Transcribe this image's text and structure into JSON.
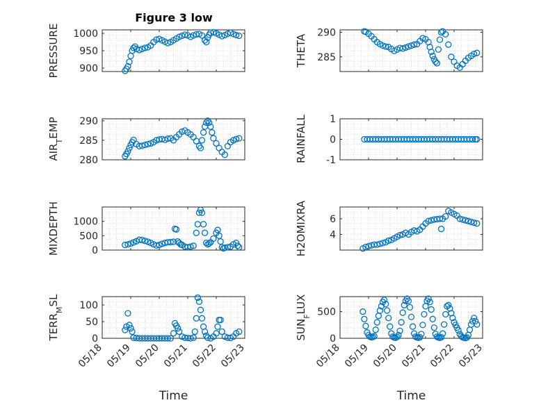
{
  "figure": {
    "title": "Figure 3 low",
    "xlabel": "Time"
  },
  "colors": {
    "marker": "#0072BD",
    "grid": "#d3d3d3",
    "axis": "#262626"
  },
  "x_ticks": [
    "05/18",
    "05/19",
    "05/20",
    "05/21",
    "05/22",
    "05/23"
  ],
  "chart_data": [
    {
      "type": "scatter",
      "ylabel": "PRESSURE",
      "title": "Figure 3 low",
      "xlim": [
        "05/18",
        "05/23"
      ],
      "ylim": [
        890,
        1010
      ],
      "yticks": [
        900,
        950,
        1000
      ],
      "grid": true,
      "series": [
        {
          "x": [
            0.8,
            0.85,
            0.9,
            0.95,
            1.0,
            1.05,
            1.1,
            1.15,
            1.2,
            1.3,
            1.4,
            1.5,
            1.6,
            1.7,
            1.8,
            1.9,
            2.0,
            2.1,
            2.2,
            2.3,
            2.4,
            2.5,
            2.6,
            2.7,
            2.8,
            2.9,
            3.0,
            3.1,
            3.2,
            3.3,
            3.4,
            3.5,
            3.6,
            3.65,
            3.7,
            3.75,
            3.8,
            3.9,
            4.0,
            4.1,
            4.2,
            4.3,
            4.4,
            4.5,
            4.6,
            4.7,
            4.8
          ],
          "y": [
            892,
            898,
            905,
            918,
            935,
            950,
            958,
            962,
            955,
            952,
            955,
            958,
            960,
            965,
            975,
            982,
            984,
            980,
            976,
            972,
            975,
            980,
            985,
            990,
            993,
            996,
            994,
            990,
            994,
            997,
            998,
            994,
            980,
            975,
            988,
            996,
            1002,
            1003,
            1000,
            996,
            992,
            995,
            999,
            1002,
            998,
            995,
            993
          ]
        }
      ]
    },
    {
      "type": "scatter",
      "ylabel": "THETA",
      "xlim": [
        "05/18",
        "05/23"
      ],
      "ylim": [
        282,
        290.5
      ],
      "yticks": [
        285,
        290
      ],
      "grid": true,
      "series": [
        {
          "x": [
            0.85,
            0.9,
            1.0,
            1.1,
            1.2,
            1.3,
            1.4,
            1.5,
            1.6,
            1.7,
            1.8,
            1.9,
            2.0,
            2.1,
            2.2,
            2.3,
            2.4,
            2.5,
            2.6,
            2.7,
            2.8,
            2.9,
            3.0,
            3.1,
            3.15,
            3.2,
            3.25,
            3.3,
            3.35,
            3.4,
            3.45,
            3.5,
            3.55,
            3.6,
            3.7,
            3.8,
            3.9,
            4.0,
            4.1,
            4.2,
            4.3,
            4.4,
            4.5,
            4.6,
            4.7,
            4.8
          ],
          "y": [
            290.2,
            290.1,
            289.7,
            289.2,
            288.6,
            288,
            287.6,
            287.3,
            287.1,
            287,
            286.6,
            286.2,
            286.5,
            286.8,
            286.7,
            286.9,
            287.1,
            287.3,
            287.5,
            287.6,
            288.2,
            288.8,
            288.6,
            288,
            287,
            286,
            285.2,
            284.5,
            284,
            283.7,
            286.5,
            288.5,
            290,
            290.2,
            289.6,
            287.5,
            285,
            284,
            283.2,
            282.8,
            283.5,
            284.2,
            284.8,
            285.2,
            285.6,
            285.8
          ]
        }
      ]
    },
    {
      "type": "scatter",
      "ylabel": "AIR_TEMP",
      "xlim": [
        "05/18",
        "05/23"
      ],
      "ylim": [
        280,
        290.5
      ],
      "yticks": [
        280,
        285,
        290
      ],
      "grid": true,
      "series": [
        {
          "x": [
            0.8,
            0.85,
            0.9,
            0.95,
            1.0,
            1.05,
            1.1,
            1.2,
            1.3,
            1.4,
            1.5,
            1.6,
            1.7,
            1.8,
            1.9,
            2.0,
            2.1,
            2.2,
            2.3,
            2.4,
            2.5,
            2.6,
            2.7,
            2.8,
            2.9,
            3.0,
            3.1,
            3.2,
            3.3,
            3.4,
            3.45,
            3.5,
            3.55,
            3.6,
            3.65,
            3.7,
            3.75,
            3.8,
            3.85,
            3.9,
            4.0,
            4.1,
            4.2,
            4.3,
            4.4,
            4.5,
            4.6,
            4.7,
            4.8
          ],
          "y": [
            280.9,
            281.5,
            282.2,
            283,
            283.8,
            284.5,
            285.1,
            284,
            283.5,
            283.6,
            283.8,
            284,
            284.2,
            284.5,
            285,
            285.2,
            285.3,
            285.1,
            285.4,
            285.5,
            285,
            285.8,
            286.5,
            287.2,
            287.5,
            287,
            286.5,
            285.8,
            284.8,
            283.5,
            283,
            285,
            287,
            288.5,
            289.5,
            290,
            289.5,
            288.5,
            287,
            285.5,
            284.2,
            283,
            282,
            281.3,
            283.5,
            284.5,
            285,
            285.3,
            285.5
          ]
        }
      ]
    },
    {
      "type": "scatter",
      "ylabel": "RAINFALL",
      "xlim": [
        "05/18",
        "05/23"
      ],
      "ylim": [
        -1,
        1
      ],
      "yticks": [
        -1,
        0,
        1
      ],
      "grid": true,
      "series": [
        {
          "x": [
            0.85,
            0.95,
            1.05,
            1.15,
            1.25,
            1.35,
            1.45,
            1.55,
            1.65,
            1.75,
            1.85,
            1.95,
            2.05,
            2.15,
            2.25,
            2.35,
            2.45,
            2.55,
            2.65,
            2.75,
            2.85,
            2.95,
            3.05,
            3.15,
            3.25,
            3.35,
            3.45,
            3.55,
            3.65,
            3.75,
            3.85,
            3.95,
            4.05,
            4.15,
            4.25,
            4.35,
            4.45,
            4.55,
            4.65,
            4.75,
            4.8
          ],
          "y": [
            0,
            0,
            0,
            0,
            0,
            0,
            0,
            0,
            0,
            0,
            0,
            0,
            0,
            0,
            0,
            0,
            0,
            0,
            0,
            0,
            0,
            0,
            0,
            0,
            0,
            0,
            0,
            0,
            0,
            0,
            0,
            0,
            0,
            0,
            0,
            0,
            0,
            0,
            0,
            0,
            0
          ]
        }
      ]
    },
    {
      "type": "scatter",
      "ylabel": "MIXDEPTH",
      "xlim": [
        "05/18",
        "05/23"
      ],
      "ylim": [
        0,
        1500
      ],
      "yticks": [
        0,
        500,
        1000
      ],
      "grid": true,
      "series": [
        {
          "x": [
            0.8,
            0.9,
            1.0,
            1.1,
            1.2,
            1.3,
            1.4,
            1.5,
            1.6,
            1.7,
            1.8,
            1.9,
            2.0,
            2.1,
            2.2,
            2.3,
            2.4,
            2.5,
            2.55,
            2.6,
            2.65,
            2.7,
            2.75,
            2.8,
            2.9,
            3.0,
            3.1,
            3.2,
            3.3,
            3.35,
            3.4,
            3.45,
            3.5,
            3.55,
            3.6,
            3.65,
            3.7,
            3.75,
            3.8,
            3.9,
            4.0,
            4.05,
            4.1,
            4.15,
            4.2,
            4.25,
            4.3,
            4.4,
            4.5,
            4.6,
            4.7,
            4.75,
            4.8
          ],
          "y": [
            180,
            200,
            230,
            270,
            310,
            360,
            350,
            320,
            290,
            250,
            200,
            160,
            180,
            220,
            250,
            270,
            280,
            290,
            740,
            720,
            300,
            250,
            200,
            180,
            120,
            100,
            120,
            150,
            600,
            900,
            1300,
            1400,
            1300,
            900,
            600,
            250,
            200,
            230,
            270,
            400,
            600,
            700,
            500,
            300,
            100,
            60,
            80,
            100,
            120,
            200,
            250,
            150,
            100
          ]
        }
      ]
    },
    {
      "type": "scatter",
      "ylabel": "H2OMIXRA",
      "xlim": [
        "05/18",
        "05/23"
      ],
      "ylim": [
        2,
        7.5
      ],
      "yticks": [
        4,
        6
      ],
      "grid": true,
      "series": [
        {
          "x": [
            0.8,
            0.9,
            1.0,
            1.1,
            1.2,
            1.3,
            1.4,
            1.5,
            1.6,
            1.7,
            1.8,
            1.9,
            2.0,
            2.1,
            2.2,
            2.3,
            2.4,
            2.5,
            2.6,
            2.7,
            2.8,
            2.9,
            3.0,
            3.1,
            3.2,
            3.3,
            3.4,
            3.5,
            3.55,
            3.6,
            3.7,
            3.8,
            3.9,
            4.0,
            4.1,
            4.2,
            4.3,
            4.4,
            4.5,
            4.6,
            4.7,
            4.8
          ],
          "y": [
            2.2,
            2.4,
            2.5,
            2.6,
            2.7,
            2.7,
            2.8,
            2.9,
            3.0,
            3.2,
            3.3,
            3.5,
            3.7,
            3.9,
            4.0,
            4.2,
            4.0,
            4.3,
            4.5,
            4.4,
            4.6,
            5.0,
            5.4,
            5.7,
            5.8,
            5.9,
            5.95,
            6.0,
            4.7,
            6.0,
            6.3,
            7.0,
            6.8,
            6.6,
            6.4,
            6.0,
            5.9,
            5.8,
            5.7,
            5.6,
            5.5,
            5.4
          ]
        }
      ]
    },
    {
      "type": "scatter",
      "ylabel": "TERR_MSL",
      "xlim": [
        "05/18",
        "05/23"
      ],
      "ylim": [
        0,
        125
      ],
      "yticks": [
        0,
        50,
        100
      ],
      "grid": true,
      "series": [
        {
          "x": [
            0.8,
            0.85,
            0.9,
            0.95,
            1.0,
            1.05,
            1.1,
            1.2,
            1.3,
            1.4,
            1.5,
            1.6,
            1.7,
            1.8,
            1.9,
            2.0,
            2.1,
            2.2,
            2.3,
            2.4,
            2.5,
            2.55,
            2.6,
            2.65,
            2.7,
            2.8,
            2.9,
            3.0,
            3.1,
            3.2,
            3.25,
            3.3,
            3.35,
            3.4,
            3.45,
            3.5,
            3.55,
            3.6,
            3.65,
            3.7,
            3.8,
            3.9,
            4.0,
            4.05,
            4.1,
            4.15,
            4.2,
            4.3,
            4.4,
            4.5,
            4.6,
            4.7,
            4.8
          ],
          "y": [
            25,
            35,
            75,
            40,
            30,
            20,
            2,
            1,
            0,
            0,
            0,
            0,
            0,
            0,
            0,
            0,
            0,
            0,
            0,
            0,
            15,
            45,
            38,
            30,
            20,
            5,
            2,
            1,
            0,
            2,
            20,
            60,
            122,
            110,
            85,
            60,
            35,
            20,
            8,
            2,
            0,
            5,
            15,
            35,
            55,
            55,
            20,
            5,
            2,
            1,
            5,
            15,
            20
          ]
        }
      ]
    },
    {
      "type": "scatter",
      "ylabel": "SUN_FLUX",
      "xlim": [
        "05/18",
        "05/23"
      ],
      "ylim": [
        0,
        780
      ],
      "yticks": [
        0,
        500
      ],
      "grid": true,
      "series": [
        {
          "x": [
            0.8,
            0.85,
            0.9,
            0.95,
            1.0,
            1.05,
            1.1,
            1.15,
            1.2,
            1.25,
            1.3,
            1.35,
            1.4,
            1.45,
            1.5,
            1.55,
            1.6,
            1.65,
            1.7,
            1.75,
            1.8,
            1.85,
            1.9,
            1.95,
            2.0,
            2.05,
            2.1,
            2.15,
            2.2,
            2.25,
            2.3,
            2.35,
            2.4,
            2.45,
            2.5,
            2.55,
            2.6,
            2.65,
            2.7,
            2.75,
            2.8,
            2.85,
            2.9,
            2.95,
            3.0,
            3.05,
            3.1,
            3.15,
            3.2,
            3.25,
            3.3,
            3.35,
            3.4,
            3.45,
            3.5,
            3.55,
            3.6,
            3.65,
            3.7,
            3.75,
            3.8,
            3.85,
            3.9,
            3.95,
            4.0,
            4.05,
            4.1,
            4.15,
            4.2,
            4.25,
            4.3,
            4.35,
            4.4,
            4.45,
            4.5,
            4.55,
            4.6,
            4.65,
            4.7,
            4.75,
            4.8
          ],
          "y": [
            500,
            360,
            230,
            110,
            60,
            30,
            20,
            25,
            40,
            160,
            300,
            420,
            520,
            600,
            680,
            720,
            640,
            520,
            380,
            220,
            90,
            30,
            15,
            10,
            25,
            60,
            140,
            300,
            480,
            620,
            700,
            740,
            700,
            580,
            400,
            220,
            90,
            30,
            15,
            10,
            20,
            80,
            250,
            450,
            600,
            700,
            740,
            680,
            540,
            360,
            200,
            80,
            30,
            15,
            10,
            20,
            90,
            260,
            450,
            600,
            620,
            560,
            470,
            380,
            300,
            250,
            200,
            150,
            80,
            40,
            20,
            10,
            5,
            15,
            60,
            160,
            260,
            320,
            380,
            320,
            260
          ]
        }
      ]
    }
  ]
}
